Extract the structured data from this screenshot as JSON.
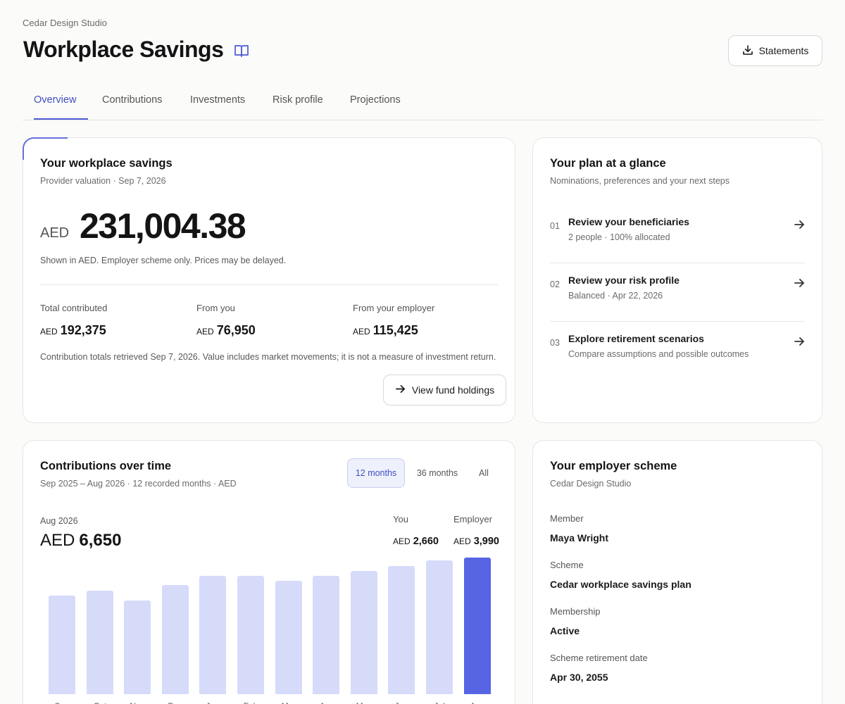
{
  "header": {
    "org": "Cedar Design Studio",
    "title": "Workplace Savings",
    "statements_label": "Statements"
  },
  "tabs": [
    {
      "label": "Overview",
      "active": true
    },
    {
      "label": "Contributions"
    },
    {
      "label": "Investments"
    },
    {
      "label": "Risk profile"
    },
    {
      "label": "Projections"
    }
  ],
  "savings": {
    "title": "Your workplace savings",
    "subtitle": "Provider valuation · Sep 7, 2026",
    "currency": "AED",
    "amount": "231,004.38",
    "note": "Shown in AED. Employer scheme only. Prices may be delayed.",
    "stats": [
      {
        "label": "Total contributed",
        "currency": "AED",
        "value": "192,375"
      },
      {
        "label": "From you",
        "currency": "AED",
        "value": "76,950"
      },
      {
        "label": "From your employer",
        "currency": "AED",
        "value": "115,425"
      }
    ],
    "footnote": "Contribution totals retrieved Sep 7, 2026. Value includes market movements; it is not a measure of investment return.",
    "holdings_label": "View fund holdings"
  },
  "plan": {
    "title": "Your plan at a glance",
    "subtitle": "Nominations, preferences and your next steps",
    "steps": [
      {
        "num": "01",
        "title": "Review your beneficiaries",
        "sub": "2 people · 100% allocated"
      },
      {
        "num": "02",
        "title": "Review your risk profile",
        "sub": "Balanced · Apr 22, 2026"
      },
      {
        "num": "03",
        "title": "Explore retirement scenarios",
        "sub": "Compare assumptions and possible outcomes"
      }
    ]
  },
  "contrib": {
    "title": "Contributions over time",
    "subtitle": "Sep 2025 – Aug 2026 · 12 recorded months · AED",
    "ranges": [
      {
        "label": "12 months",
        "active": true
      },
      {
        "label": "36 months"
      },
      {
        "label": "All"
      }
    ],
    "selected_month": "Aug 2026",
    "selected_currency": "AED",
    "selected_total": "6,650",
    "you_label": "You",
    "you_currency": "AED",
    "you_value": "2,660",
    "employer_label": "Employer",
    "employer_currency": "AED",
    "employer_value": "3,990"
  },
  "chart_data": {
    "type": "bar",
    "categories": [
      "Sep",
      "Oct",
      "Nov",
      "Dec",
      "Jan",
      "Feb",
      "Mar",
      "Apr",
      "May",
      "Jun",
      "Jul",
      "Aug"
    ],
    "values": [
      4800,
      5050,
      4550,
      5300,
      5750,
      5750,
      5500,
      5750,
      6000,
      6250,
      6500,
      6650
    ],
    "highlight_index": 11,
    "ylim": [
      0,
      6850
    ],
    "colors": {
      "bar": "#d6dbfa",
      "highlight": "#5764e3"
    }
  },
  "scheme": {
    "title": "Your employer scheme",
    "subtitle": "Cedar Design Studio",
    "fields": [
      {
        "label": "Member",
        "value": "Maya Wright"
      },
      {
        "label": "Scheme",
        "value": "Cedar workplace savings plan"
      },
      {
        "label": "Membership",
        "value": "Active"
      },
      {
        "label": "Scheme retirement date",
        "value": "Apr 30, 2055"
      }
    ]
  },
  "colors": {
    "accent": "#4d5bd3",
    "background": "#fbfbfa"
  }
}
